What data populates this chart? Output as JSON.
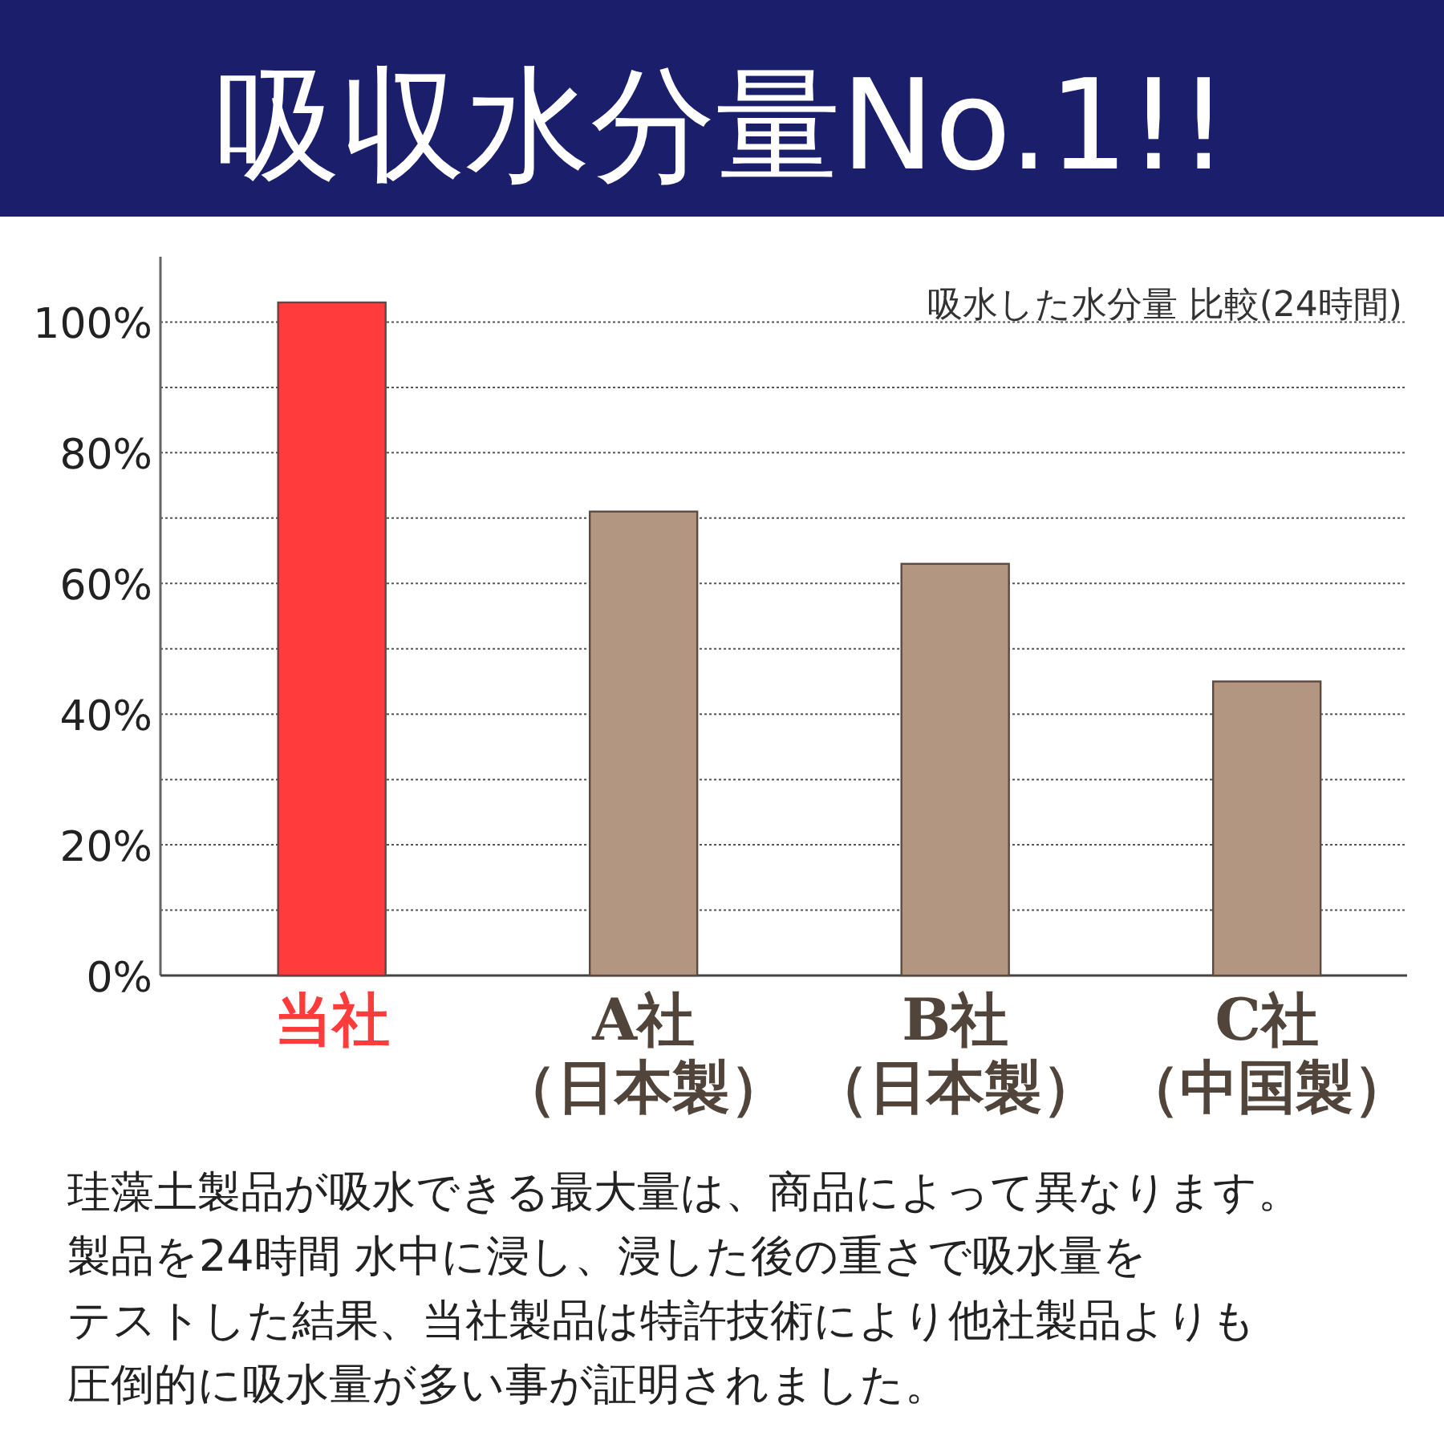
{
  "chart_data": {
    "type": "bar",
    "title": "吸収水分量No.1!!",
    "subtitle": "吸水した水分量 比較(24時間)",
    "categories": [
      "当社",
      "A社（日本製）",
      "B社（日本製）",
      "C社（中国製）"
    ],
    "values": [
      103,
      71,
      63,
      45
    ],
    "colors": [
      "#ff3b3b",
      "#b39682",
      "#b39682",
      "#b39682"
    ],
    "ylim": [
      0,
      110
    ],
    "yticks": [
      {
        "value": 0,
        "label": "0%"
      },
      {
        "value": 10,
        "label": null
      },
      {
        "value": 20,
        "label": "20%"
      },
      {
        "value": 30,
        "label": null
      },
      {
        "value": 40,
        "label": "40%"
      },
      {
        "value": 50,
        "label": null
      },
      {
        "value": 60,
        "label": "60%"
      },
      {
        "value": 70,
        "label": null
      },
      {
        "value": 80,
        "label": "80%"
      },
      {
        "value": 90,
        "label": null
      },
      {
        "value": 100,
        "label": "100%"
      }
    ],
    "grid": "y",
    "annotations": [
      "珪藻土製品が吸水できる最大量は、商品によって異なります。",
      "製品を24時間 水中に浸し、浸した後の重さで吸水量を",
      "テストした結果、当社製品は特許技術により他社製品よりも",
      "圧倒的に吸水量が多い事が証明されました。"
    ]
  }
}
